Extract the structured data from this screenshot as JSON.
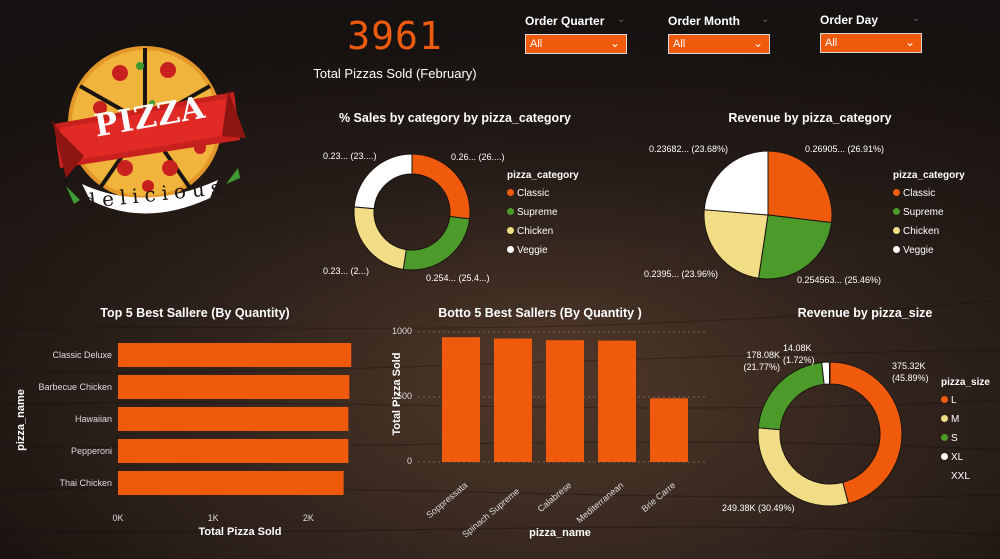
{
  "kpi": {
    "value": "3961",
    "label": "Total Pizzas Sold (February)"
  },
  "logo": {
    "word": "PIZZA",
    "tagline": "delicious"
  },
  "slicers": [
    {
      "label": "Order Quarter",
      "value": "All"
    },
    {
      "label": "Order Month",
      "value": "All"
    },
    {
      "label": "Order Day",
      "value": "All"
    }
  ],
  "colors": {
    "orange": "#f05a0d",
    "green": "#4c9a2a",
    "yellow": "#f1dd86",
    "white": "#ffffff",
    "accent": "#f05a0d"
  },
  "legend_category": {
    "title": "pizza_category",
    "items": [
      "Classic",
      "Supreme",
      "Chicken",
      "Veggie"
    ]
  },
  "legend_size": {
    "title": "pizza_size",
    "items": [
      "L",
      "M",
      "S",
      "XL",
      "XXL"
    ]
  },
  "chart_data": [
    {
      "type": "pie",
      "variant": "donut",
      "title": "% Sales by category by pizza_category",
      "categories": [
        "Classic",
        "Supreme",
        "Chicken",
        "Veggie"
      ],
      "values": [
        26.9,
        25.5,
        24.0,
        23.6
      ],
      "labels": [
        "0.26... (26....)",
        "0.254... (25.4...)",
        "0.23... (2...)",
        "0.23... (23....)"
      ]
    },
    {
      "type": "pie",
      "title": "Revenue by pizza_category",
      "categories": [
        "Classic",
        "Supreme",
        "Chicken",
        "Veggie"
      ],
      "values": [
        26.91,
        25.46,
        23.96,
        23.68
      ],
      "labels": [
        "0.26905... (26.91%)",
        "0.254563... (25.46%)",
        "0.2395... (23.96%)",
        "0.23682... (23.68%)"
      ]
    },
    {
      "type": "bar",
      "orientation": "horizontal",
      "title": "Top 5 Best Sallere (By Quantity)",
      "categories": [
        "Classic Deluxe",
        "Barbecue Chicken",
        "Hawaiian",
        "Pepperoni",
        "Thai Chicken"
      ],
      "values": [
        2450,
        2430,
        2420,
        2420,
        2370
      ],
      "xlabel": "Total Pizza Sold",
      "ylabel": "pizza_name",
      "xticks": [
        "0K",
        "1K",
        "2K"
      ],
      "xlim": [
        0,
        2500
      ]
    },
    {
      "type": "bar",
      "title": "Botto 5 Best Sallers (By Quantity )",
      "categories": [
        "Soppressata",
        "Spinach Supreme",
        "Calabrese",
        "Mediterranean",
        "Brie Carre"
      ],
      "values": [
        960,
        950,
        937,
        934,
        490
      ],
      "xlabel": "pizza_name",
      "ylabel": "Total Pizza Sold",
      "yticks": [
        "0",
        "500",
        "1000"
      ],
      "ylim": [
        0,
        1000
      ]
    },
    {
      "type": "pie",
      "variant": "donut",
      "title": "Revenue by pizza_size",
      "categories": [
        "L",
        "M",
        "S",
        "XL",
        "XXL"
      ],
      "values": [
        375.32,
        249.38,
        178.08,
        14.08,
        1.01
      ],
      "labels": [
        "375.32K\n(45.89%)",
        "249.38K (30.49%)",
        "178.08K\n(21.77%)",
        "14.08K\n(1.72%)",
        ""
      ]
    }
  ]
}
